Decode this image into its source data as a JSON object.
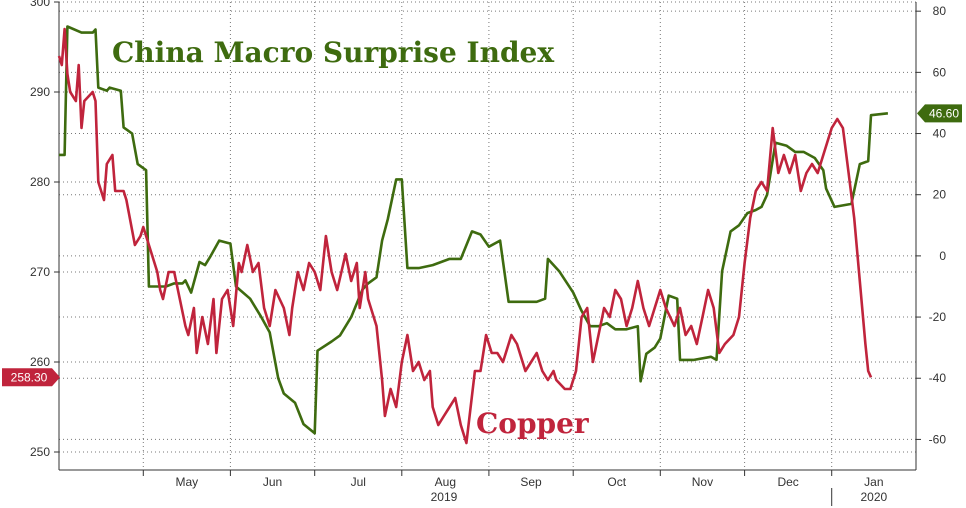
{
  "chart_data": {
    "type": "line",
    "title": "",
    "xlabel": "",
    "year_labels": [
      "2019",
      "2020"
    ],
    "x_tick_labels": [
      "May",
      "Jun",
      "Jul",
      "Aug",
      "Sep",
      "Oct",
      "Nov",
      "Dec",
      "Jan"
    ],
    "x_range": [
      "2019-04-01",
      "2020-01-31"
    ],
    "left_axis": {
      "ylabel": "",
      "ylim": [
        248,
        300
      ],
      "ticks": [
        250,
        260,
        270,
        280,
        290,
        300
      ]
    },
    "right_axis": {
      "ylabel": "",
      "ylim": [
        -70,
        83
      ],
      "ticks": [
        -60,
        -40,
        -20,
        0,
        20,
        40,
        60,
        80
      ]
    },
    "grid": true,
    "colors": {
      "copper": "#c0243c",
      "surprise": "#3e6b0f"
    },
    "series": [
      {
        "name": "China Macro Surprise Index",
        "axis": "right",
        "last_value_label": "46.60",
        "points": [
          [
            "2019-04-01",
            33
          ],
          [
            "2019-04-03",
            33
          ],
          [
            "2019-04-04",
            75
          ],
          [
            "2019-04-09",
            73
          ],
          [
            "2019-04-13",
            73
          ],
          [
            "2019-04-14",
            74
          ],
          [
            "2019-04-15",
            55
          ],
          [
            "2019-04-18",
            54
          ],
          [
            "2019-04-19",
            55
          ],
          [
            "2019-04-23",
            54
          ],
          [
            "2019-04-24",
            42
          ],
          [
            "2019-04-27",
            40
          ],
          [
            "2019-04-29",
            30
          ],
          [
            "2019-05-02",
            28
          ],
          [
            "2019-05-03",
            -10
          ],
          [
            "2019-05-09",
            -10
          ],
          [
            "2019-05-12",
            -9
          ],
          [
            "2019-05-15",
            -9
          ],
          [
            "2019-05-16",
            -8
          ],
          [
            "2019-05-18",
            -12
          ],
          [
            "2019-05-21",
            -2
          ],
          [
            "2019-05-23",
            -3
          ],
          [
            "2019-05-25",
            0
          ],
          [
            "2019-05-28",
            5
          ],
          [
            "2019-06-01",
            4
          ],
          [
            "2019-06-03",
            -10
          ],
          [
            "2019-06-08",
            -14
          ],
          [
            "2019-06-12",
            -20
          ],
          [
            "2019-06-15",
            -25
          ],
          [
            "2019-06-18",
            -40
          ],
          [
            "2019-06-20",
            -45
          ],
          [
            "2019-06-24",
            -48
          ],
          [
            "2019-06-27",
            -55
          ],
          [
            "2019-07-01",
            -58
          ],
          [
            "2019-07-02",
            -31
          ],
          [
            "2019-07-07",
            -28
          ],
          [
            "2019-07-10",
            -26
          ],
          [
            "2019-07-14",
            -20
          ],
          [
            "2019-07-18",
            -11
          ],
          [
            "2019-07-20",
            -9
          ],
          [
            "2019-07-23",
            -7
          ],
          [
            "2019-07-25",
            5
          ],
          [
            "2019-07-27",
            12
          ],
          [
            "2019-07-30",
            25
          ],
          [
            "2019-08-01",
            25
          ],
          [
            "2019-08-03",
            -4
          ],
          [
            "2019-08-07",
            -4
          ],
          [
            "2019-08-12",
            -3
          ],
          [
            "2019-08-18",
            -1
          ],
          [
            "2019-08-22",
            -1
          ],
          [
            "2019-08-26",
            8
          ],
          [
            "2019-08-29",
            7
          ],
          [
            "2019-09-01",
            3
          ],
          [
            "2019-09-05",
            5
          ],
          [
            "2019-09-08",
            -15
          ],
          [
            "2019-09-13",
            -15
          ],
          [
            "2019-09-18",
            -15
          ],
          [
            "2019-09-21",
            -14
          ],
          [
            "2019-09-22",
            -1
          ],
          [
            "2019-09-26",
            -5
          ],
          [
            "2019-10-01",
            -12
          ],
          [
            "2019-10-04",
            -18
          ],
          [
            "2019-10-07",
            -23
          ],
          [
            "2019-10-10",
            -23
          ],
          [
            "2019-10-13",
            -22
          ],
          [
            "2019-10-16",
            -24
          ],
          [
            "2019-10-20",
            -24
          ],
          [
            "2019-10-24",
            -23
          ],
          [
            "2019-10-25",
            -41
          ],
          [
            "2019-10-27",
            -32
          ],
          [
            "2019-10-30",
            -30
          ],
          [
            "2019-11-01",
            -27
          ],
          [
            "2019-11-04",
            -13
          ],
          [
            "2019-11-07",
            -14
          ],
          [
            "2019-11-08",
            -34
          ],
          [
            "2019-11-13",
            -34
          ],
          [
            "2019-11-19",
            -33
          ],
          [
            "2019-11-21",
            -34
          ],
          [
            "2019-11-23",
            -5
          ],
          [
            "2019-11-26",
            8
          ],
          [
            "2019-11-29",
            10
          ],
          [
            "2019-12-02",
            14
          ],
          [
            "2019-12-05",
            15
          ],
          [
            "2019-12-07",
            16
          ],
          [
            "2019-12-09",
            20
          ],
          [
            "2019-12-12",
            37
          ],
          [
            "2019-12-16",
            36
          ],
          [
            "2019-12-19",
            34
          ],
          [
            "2019-12-22",
            34
          ],
          [
            "2019-12-26",
            32
          ],
          [
            "2019-12-29",
            28
          ],
          [
            "2019-12-30",
            22
          ],
          [
            "2020-01-02",
            16
          ],
          [
            "2020-01-08",
            17
          ],
          [
            "2020-01-11",
            30
          ],
          [
            "2020-01-14",
            31
          ],
          [
            "2020-01-15",
            46
          ],
          [
            "2020-01-21",
            46.6
          ]
        ]
      },
      {
        "name": "Copper",
        "axis": "left",
        "last_value_label": "258.30",
        "points": [
          [
            "2019-04-01",
            294
          ],
          [
            "2019-04-02",
            293
          ],
          [
            "2019-04-03",
            297
          ],
          [
            "2019-04-04",
            292
          ],
          [
            "2019-04-05",
            290
          ],
          [
            "2019-04-07",
            289
          ],
          [
            "2019-04-08",
            293
          ],
          [
            "2019-04-09",
            286
          ],
          [
            "2019-04-10",
            289
          ],
          [
            "2019-04-13",
            290
          ],
          [
            "2019-04-14",
            289
          ],
          [
            "2019-04-15",
            280
          ],
          [
            "2019-04-17",
            278
          ],
          [
            "2019-04-18",
            282
          ],
          [
            "2019-04-20",
            283
          ],
          [
            "2019-04-21",
            279
          ],
          [
            "2019-04-24",
            279
          ],
          [
            "2019-04-25",
            278
          ],
          [
            "2019-04-28",
            273
          ],
          [
            "2019-04-30",
            274
          ],
          [
            "2019-05-01",
            275
          ],
          [
            "2019-05-04",
            272
          ],
          [
            "2019-05-06",
            270
          ],
          [
            "2019-05-07",
            268
          ],
          [
            "2019-05-08",
            267
          ],
          [
            "2019-05-10",
            270
          ],
          [
            "2019-05-12",
            270
          ],
          [
            "2019-05-14",
            267
          ],
          [
            "2019-05-16",
            264
          ],
          [
            "2019-05-17",
            263
          ],
          [
            "2019-05-19",
            266
          ],
          [
            "2019-05-20",
            261
          ],
          [
            "2019-05-22",
            265
          ],
          [
            "2019-05-24",
            262
          ],
          [
            "2019-05-26",
            267
          ],
          [
            "2019-05-27",
            261
          ],
          [
            "2019-05-29",
            267
          ],
          [
            "2019-05-31",
            268
          ],
          [
            "2019-06-02",
            264
          ],
          [
            "2019-06-04",
            271
          ],
          [
            "2019-06-05",
            270
          ],
          [
            "2019-06-07",
            273
          ],
          [
            "2019-06-09",
            270
          ],
          [
            "2019-06-11",
            271
          ],
          [
            "2019-06-13",
            266
          ],
          [
            "2019-06-15",
            264
          ],
          [
            "2019-06-17",
            268
          ],
          [
            "2019-06-20",
            266
          ],
          [
            "2019-06-22",
            263
          ],
          [
            "2019-06-23",
            266
          ],
          [
            "2019-06-25",
            270
          ],
          [
            "2019-06-27",
            268
          ],
          [
            "2019-06-29",
            271
          ],
          [
            "2019-07-01",
            270
          ],
          [
            "2019-07-03",
            268
          ],
          [
            "2019-07-05",
            274
          ],
          [
            "2019-07-07",
            270
          ],
          [
            "2019-07-09",
            268
          ],
          [
            "2019-07-12",
            272
          ],
          [
            "2019-07-14",
            269
          ],
          [
            "2019-07-16",
            271
          ],
          [
            "2019-07-17",
            266
          ],
          [
            "2019-07-19",
            270
          ],
          [
            "2019-07-20",
            267
          ],
          [
            "2019-07-23",
            264
          ],
          [
            "2019-07-25",
            258
          ],
          [
            "2019-07-26",
            254
          ],
          [
            "2019-07-28",
            257
          ],
          [
            "2019-07-30",
            255
          ],
          [
            "2019-08-01",
            260
          ],
          [
            "2019-08-03",
            263
          ],
          [
            "2019-08-05",
            259
          ],
          [
            "2019-08-07",
            260
          ],
          [
            "2019-08-09",
            258
          ],
          [
            "2019-08-11",
            259
          ],
          [
            "2019-08-12",
            255
          ],
          [
            "2019-08-14",
            253
          ],
          [
            "2019-08-16",
            254
          ],
          [
            "2019-08-18",
            255
          ],
          [
            "2019-08-20",
            256
          ],
          [
            "2019-08-22",
            253
          ],
          [
            "2019-08-24",
            251
          ],
          [
            "2019-08-27",
            259
          ],
          [
            "2019-08-29",
            259
          ],
          [
            "2019-08-31",
            263
          ],
          [
            "2019-09-02",
            261
          ],
          [
            "2019-09-04",
            261
          ],
          [
            "2019-09-06",
            260
          ],
          [
            "2019-09-08",
            262
          ],
          [
            "2019-09-09",
            263
          ],
          [
            "2019-09-11",
            262
          ],
          [
            "2019-09-13",
            260
          ],
          [
            "2019-09-14",
            259
          ],
          [
            "2019-09-16",
            260
          ],
          [
            "2019-09-18",
            261
          ],
          [
            "2019-09-20",
            259
          ],
          [
            "2019-09-22",
            258
          ],
          [
            "2019-09-24",
            259
          ],
          [
            "2019-09-25",
            258
          ],
          [
            "2019-09-28",
            257
          ],
          [
            "2019-09-30",
            257
          ],
          [
            "2019-10-02",
            259
          ],
          [
            "2019-10-04",
            265
          ],
          [
            "2019-10-06",
            266
          ],
          [
            "2019-10-08",
            260
          ],
          [
            "2019-10-10",
            263
          ],
          [
            "2019-10-12",
            266
          ],
          [
            "2019-10-14",
            265
          ],
          [
            "2019-10-16",
            268
          ],
          [
            "2019-10-18",
            267
          ],
          [
            "2019-10-20",
            264
          ],
          [
            "2019-10-22",
            266
          ],
          [
            "2019-10-24",
            269
          ],
          [
            "2019-10-26",
            266
          ],
          [
            "2019-10-28",
            264
          ],
          [
            "2019-10-30",
            266
          ],
          [
            "2019-11-01",
            268
          ],
          [
            "2019-11-03",
            266
          ],
          [
            "2019-11-06",
            264
          ],
          [
            "2019-11-08",
            266
          ],
          [
            "2019-11-10",
            263
          ],
          [
            "2019-11-12",
            264
          ],
          [
            "2019-11-14",
            262
          ],
          [
            "2019-11-16",
            265
          ],
          [
            "2019-11-18",
            268
          ],
          [
            "2019-11-20",
            266
          ],
          [
            "2019-11-22",
            261
          ],
          [
            "2019-11-24",
            262
          ],
          [
            "2019-11-27",
            263
          ],
          [
            "2019-11-29",
            265
          ],
          [
            "2019-12-01",
            271
          ],
          [
            "2019-12-03",
            276
          ],
          [
            "2019-12-05",
            279
          ],
          [
            "2019-12-07",
            280
          ],
          [
            "2019-12-09",
            279
          ],
          [
            "2019-12-11",
            286
          ],
          [
            "2019-12-13",
            281
          ],
          [
            "2019-12-15",
            283
          ],
          [
            "2019-12-17",
            281
          ],
          [
            "2019-12-19",
            283
          ],
          [
            "2019-12-21",
            279
          ],
          [
            "2019-12-23",
            281
          ],
          [
            "2019-12-25",
            282
          ],
          [
            "2019-12-27",
            281
          ],
          [
            "2020-01-01",
            286
          ],
          [
            "2020-01-03",
            287
          ],
          [
            "2020-01-05",
            286
          ],
          [
            "2020-01-07",
            281
          ],
          [
            "2020-01-09",
            276
          ],
          [
            "2020-01-11",
            269
          ],
          [
            "2020-01-13",
            262
          ],
          [
            "2020-01-14",
            259
          ],
          [
            "2020-01-15",
            258.3
          ]
        ]
      }
    ],
    "annotations": [
      "China Macro Surprise Index",
      "Copper"
    ]
  }
}
